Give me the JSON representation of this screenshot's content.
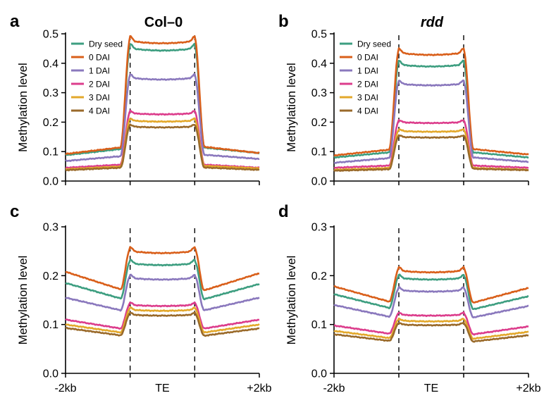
{
  "figure": {
    "legend_entries": [
      "Dry seed",
      "0 DAI",
      "1 DAI",
      "2 DAI",
      "3 DAI",
      "4 DAI"
    ],
    "series_colors": {
      "Dry seed": "#3d9e80",
      "0 DAI": "#d95f1a",
      "1 DAI": "#8a78bd",
      "2 DAI": "#dc3d8c",
      "3 DAI": "#e3a82b",
      "4 DAI": "#9a6a2a"
    },
    "x_tick_labels": [
      "-2kb",
      "TE",
      "+2kb"
    ]
  },
  "chart_data": [
    {
      "type": "line",
      "panel": "a",
      "title": "Col–0",
      "title_italic": false,
      "ylabel": "Methylation level",
      "ylim": [
        0,
        0.5
      ],
      "yticks": [
        0.0,
        0.1,
        0.2,
        0.3,
        0.4,
        0.5
      ],
      "ytick_labels": [
        "0.0",
        "0.1",
        "0.2",
        "0.3",
        "0.4",
        "0.5"
      ],
      "x_regions": [
        "-2kb",
        "TE",
        "+2kb"
      ],
      "te_boundaries_dashed": true,
      "legend": "top-left",
      "series": [
        {
          "name": "Dry seed",
          "flank_start": 0.088,
          "flank_end": 0.095,
          "body": 0.45
        },
        {
          "name": "0 DAI",
          "flank_start": 0.092,
          "flank_end": 0.095,
          "body": 0.475
        },
        {
          "name": "1 DAI",
          "flank_start": 0.068,
          "flank_end": 0.075,
          "body": 0.35
        },
        {
          "name": "2 DAI",
          "flank_start": 0.045,
          "flank_end": 0.045,
          "body": 0.23
        },
        {
          "name": "3 DAI",
          "flank_start": 0.04,
          "flank_end": 0.043,
          "body": 0.205
        },
        {
          "name": "4 DAI",
          "flank_start": 0.037,
          "flank_end": 0.038,
          "body": 0.185
        }
      ]
    },
    {
      "type": "line",
      "panel": "b",
      "title": "rdd",
      "title_italic": true,
      "ylabel": "Methylation level",
      "ylim": [
        0,
        0.5
      ],
      "yticks": [
        0.0,
        0.1,
        0.2,
        0.3,
        0.4,
        0.5
      ],
      "ytick_labels": [
        "0.0",
        "0.1",
        "0.2",
        "0.3",
        "0.4",
        "0.5"
      ],
      "x_regions": [
        "-2kb",
        "TE",
        "+2kb"
      ],
      "te_boundaries_dashed": true,
      "legend": "top-left",
      "series": [
        {
          "name": "Dry seed",
          "flank_start": 0.08,
          "flank_end": 0.08,
          "body": 0.395
        },
        {
          "name": "0 DAI",
          "flank_start": 0.087,
          "flank_end": 0.09,
          "body": 0.435
        },
        {
          "name": "1 DAI",
          "flank_start": 0.062,
          "flank_end": 0.065,
          "body": 0.33
        },
        {
          "name": "2 DAI",
          "flank_start": 0.045,
          "flank_end": 0.045,
          "body": 0.2
        },
        {
          "name": "3 DAI",
          "flank_start": 0.038,
          "flank_end": 0.038,
          "body": 0.17
        },
        {
          "name": "4 DAI",
          "flank_start": 0.035,
          "flank_end": 0.037,
          "body": 0.15
        }
      ]
    },
    {
      "type": "line",
      "panel": "c",
      "title": "",
      "ylabel": "Methylation level",
      "ylim": [
        0,
        0.3
      ],
      "yticks": [
        0.0,
        0.1,
        0.2,
        0.3
      ],
      "ytick_labels": [
        "0.0",
        "0.1",
        "0.2",
        "0.3"
      ],
      "x_tick_labels": [
        "-2kb",
        "TE",
        "+2kb"
      ],
      "te_boundaries_dashed": true,
      "series": [
        {
          "name": "Dry seed",
          "flank_start": 0.185,
          "flank_end": 0.183,
          "body": 0.225
        },
        {
          "name": "0 DAI",
          "flank_start": 0.208,
          "flank_end": 0.205,
          "body": 0.25
        },
        {
          "name": "1 DAI",
          "flank_start": 0.155,
          "flank_end": 0.155,
          "body": 0.195
        },
        {
          "name": "2 DAI",
          "flank_start": 0.11,
          "flank_end": 0.11,
          "body": 0.14
        },
        {
          "name": "3 DAI",
          "flank_start": 0.1,
          "flank_end": 0.1,
          "body": 0.13
        },
        {
          "name": "4 DAI",
          "flank_start": 0.093,
          "flank_end": 0.092,
          "body": 0.12
        }
      ]
    },
    {
      "type": "line",
      "panel": "d",
      "title": "",
      "ylabel": "Methylation level",
      "ylim": [
        0,
        0.3
      ],
      "yticks": [
        0.0,
        0.1,
        0.2,
        0.3
      ],
      "ytick_labels": [
        "0.0",
        "0.1",
        "0.2",
        "0.3"
      ],
      "x_tick_labels": [
        "-2kb",
        "TE",
        "+2kb"
      ],
      "te_boundaries_dashed": true,
      "series": [
        {
          "name": "Dry seed",
          "flank_start": 0.162,
          "flank_end": 0.158,
          "body": 0.195
        },
        {
          "name": "0 DAI",
          "flank_start": 0.178,
          "flank_end": 0.175,
          "body": 0.21
        },
        {
          "name": "1 DAI",
          "flank_start": 0.14,
          "flank_end": 0.138,
          "body": 0.17
        },
        {
          "name": "2 DAI",
          "flank_start": 0.098,
          "flank_end": 0.096,
          "body": 0.12
        },
        {
          "name": "3 DAI",
          "flank_start": 0.087,
          "flank_end": 0.085,
          "body": 0.108
        },
        {
          "name": "4 DAI",
          "flank_start": 0.08,
          "flank_end": 0.078,
          "body": 0.1
        }
      ]
    }
  ]
}
